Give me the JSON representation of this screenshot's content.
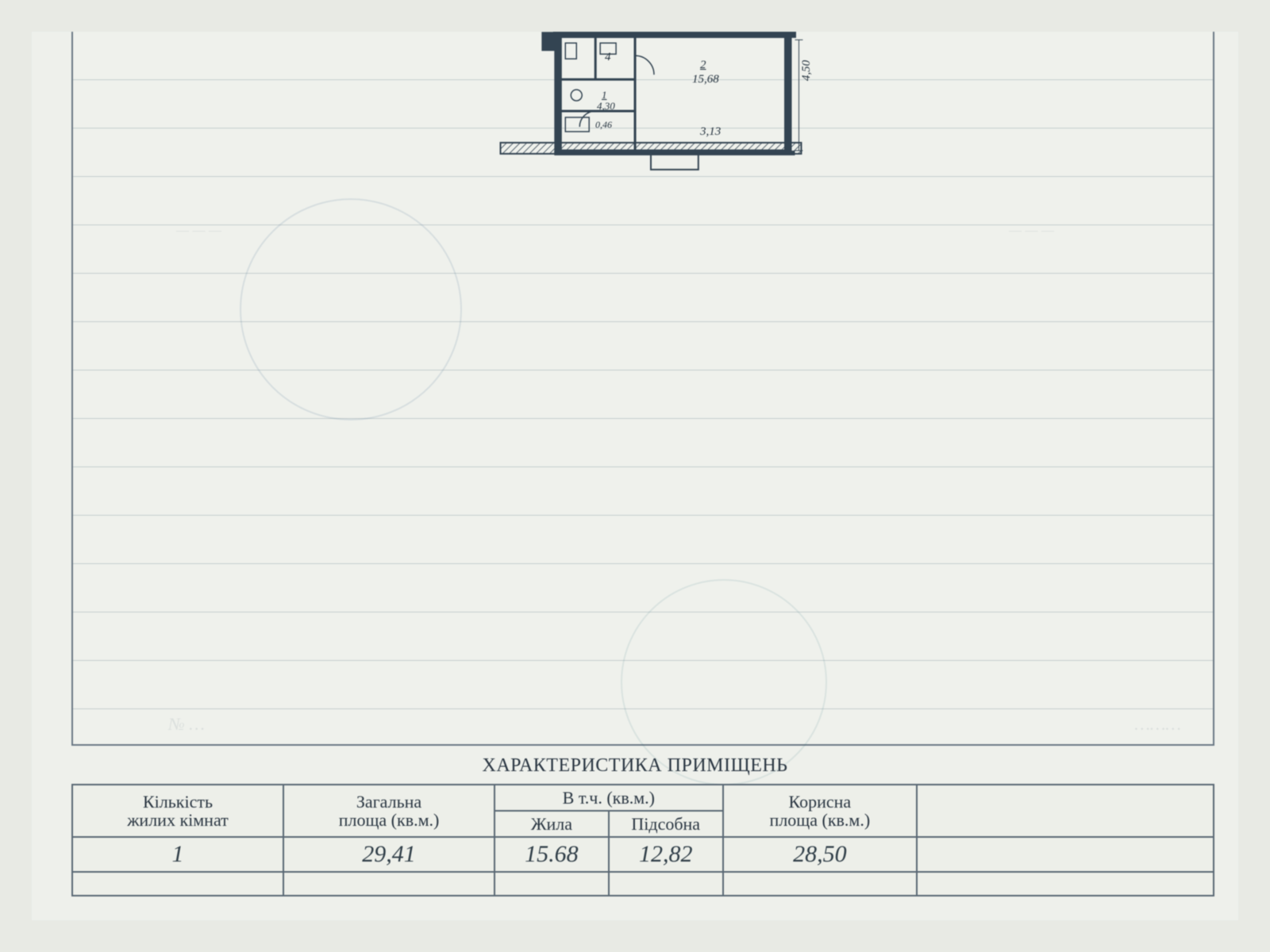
{
  "title": "ХАРАКТЕРИСТИКА ПРИМІЩЕНЬ",
  "table": {
    "cols": {
      "rooms": "Кількість\nжилих кімнат",
      "total": "Загальна\nплоща (кв.м.)",
      "incl": "В т.ч. (кв.м.)",
      "living": "Жила",
      "aux": "Підсобна",
      "useful": "Корисна\nплоща (кв.м.)",
      "extra": ""
    },
    "row": {
      "rooms": "1",
      "total": "29,41",
      "living": "15.68",
      "aux": "12,82",
      "useful": "28,50",
      "extra": ""
    },
    "col_widths_pct": [
      18.5,
      18.5,
      10,
      10,
      17,
      26
    ]
  },
  "plan": {
    "labels": {
      "room_no": "4",
      "main_area": "15,68",
      "main_idx": "2",
      "dim_right": "4,50",
      "dim_bottom": "3,13",
      "small_area": "4,30",
      "small_idx": "1",
      "tiny": "0,46"
    },
    "colors": {
      "paper": "#eef0eb",
      "line": "#334452",
      "hatch": "#55636f",
      "grid": "#8a9aa4"
    }
  }
}
